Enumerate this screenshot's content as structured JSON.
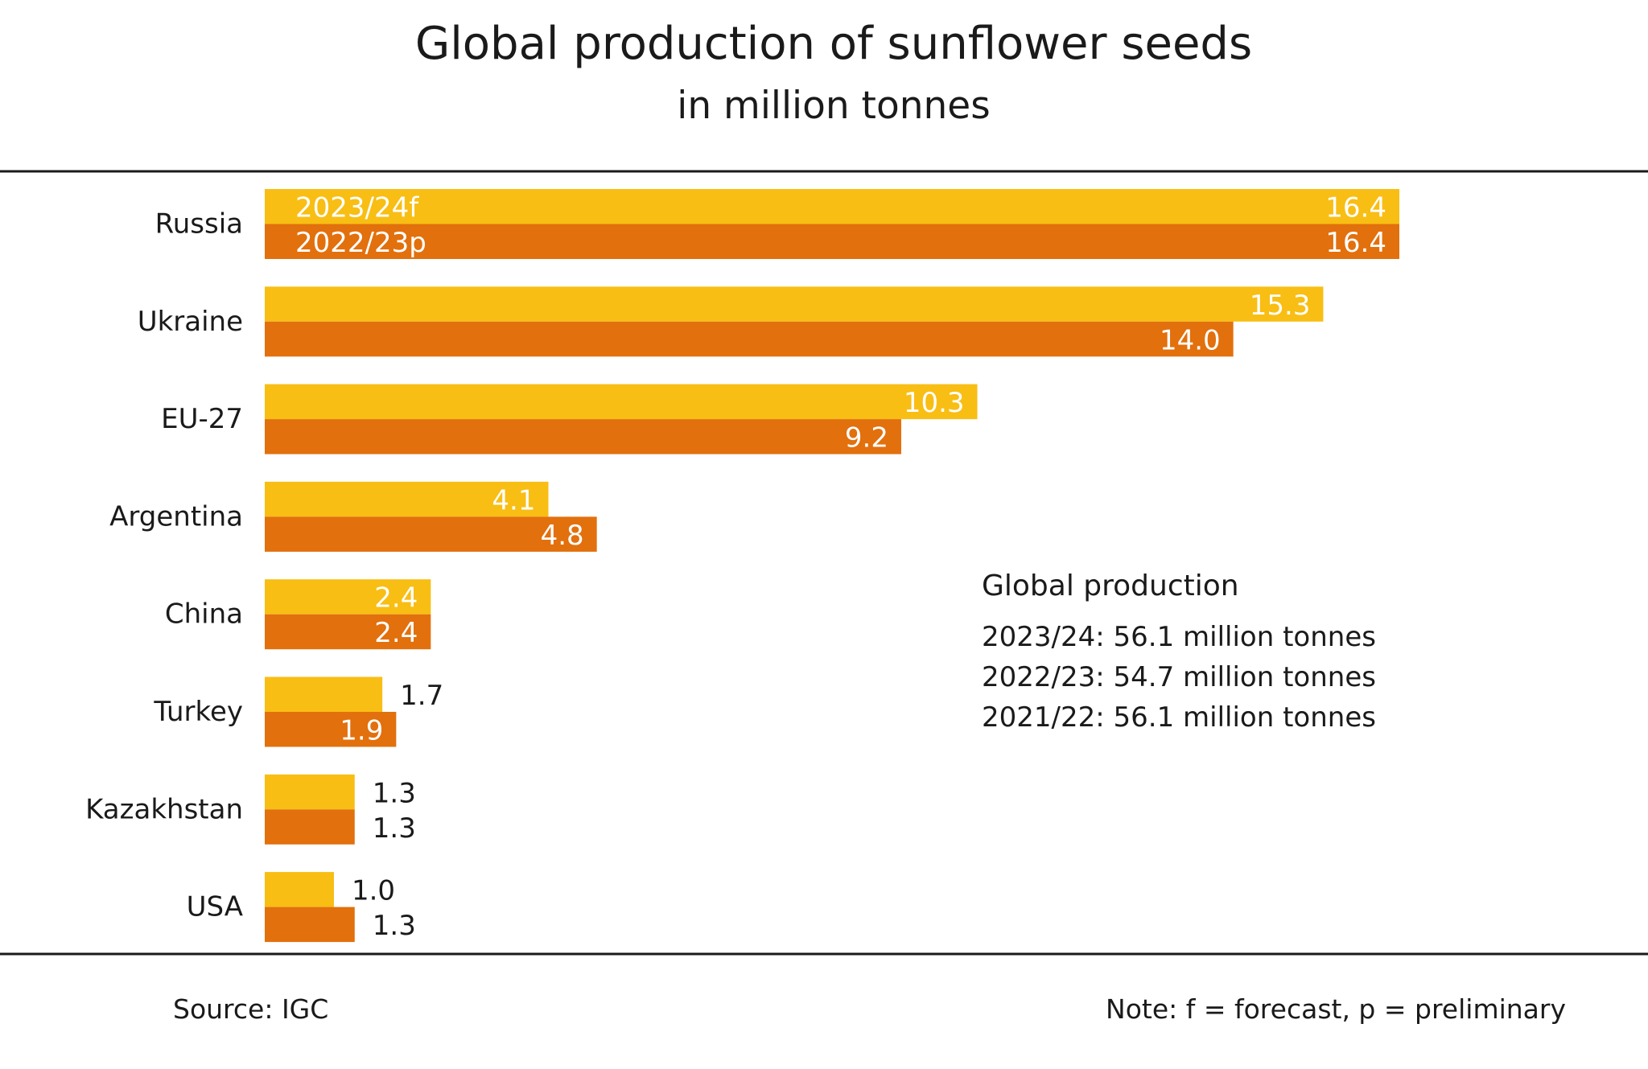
{
  "title": "Global production of sunflower seeds",
  "subtitle": "in million tonnes",
  "source": "Source:  IGC",
  "note": "Note: f = forecast, p = preliminary",
  "colors": {
    "series_a": "#f8be14",
    "series_b": "#e2700d",
    "rule": "#1a1a1a"
  },
  "chart_data": {
    "type": "bar",
    "orientation": "horizontal",
    "categories": [
      "Russia",
      "Ukraine",
      "EU-27",
      "Argentina",
      "China",
      "Turkey",
      "Kazakhstan",
      "USA"
    ],
    "series": [
      {
        "name": "2023/24f",
        "color": "#f8be14",
        "values": [
          16.4,
          15.3,
          10.3,
          4.1,
          2.4,
          1.7,
          1.3,
          1.0
        ]
      },
      {
        "name": "2022/23p",
        "color": "#e2700d",
        "values": [
          16.4,
          14.0,
          9.2,
          4.8,
          2.4,
          1.9,
          1.3,
          1.3
        ]
      }
    ],
    "value_labels": [
      [
        "16.4",
        "15.3",
        "10.3",
        "4.1",
        "2.4",
        "1.7",
        "1.3",
        "1.0"
      ],
      [
        "16.4",
        "14.0",
        "9.2",
        "4.8",
        "2.4",
        "1.9",
        "1.3",
        "1.3"
      ]
    ],
    "xlim": [
      0,
      16.4
    ],
    "grid": false,
    "legend": "inside first bar"
  },
  "summary": {
    "heading": "Global production",
    "lines": [
      "2023/24: 56.1 million tonnes",
      "2022/23: 54.7 million tonnes",
      "2021/22: 56.1 million tonnes"
    ]
  }
}
